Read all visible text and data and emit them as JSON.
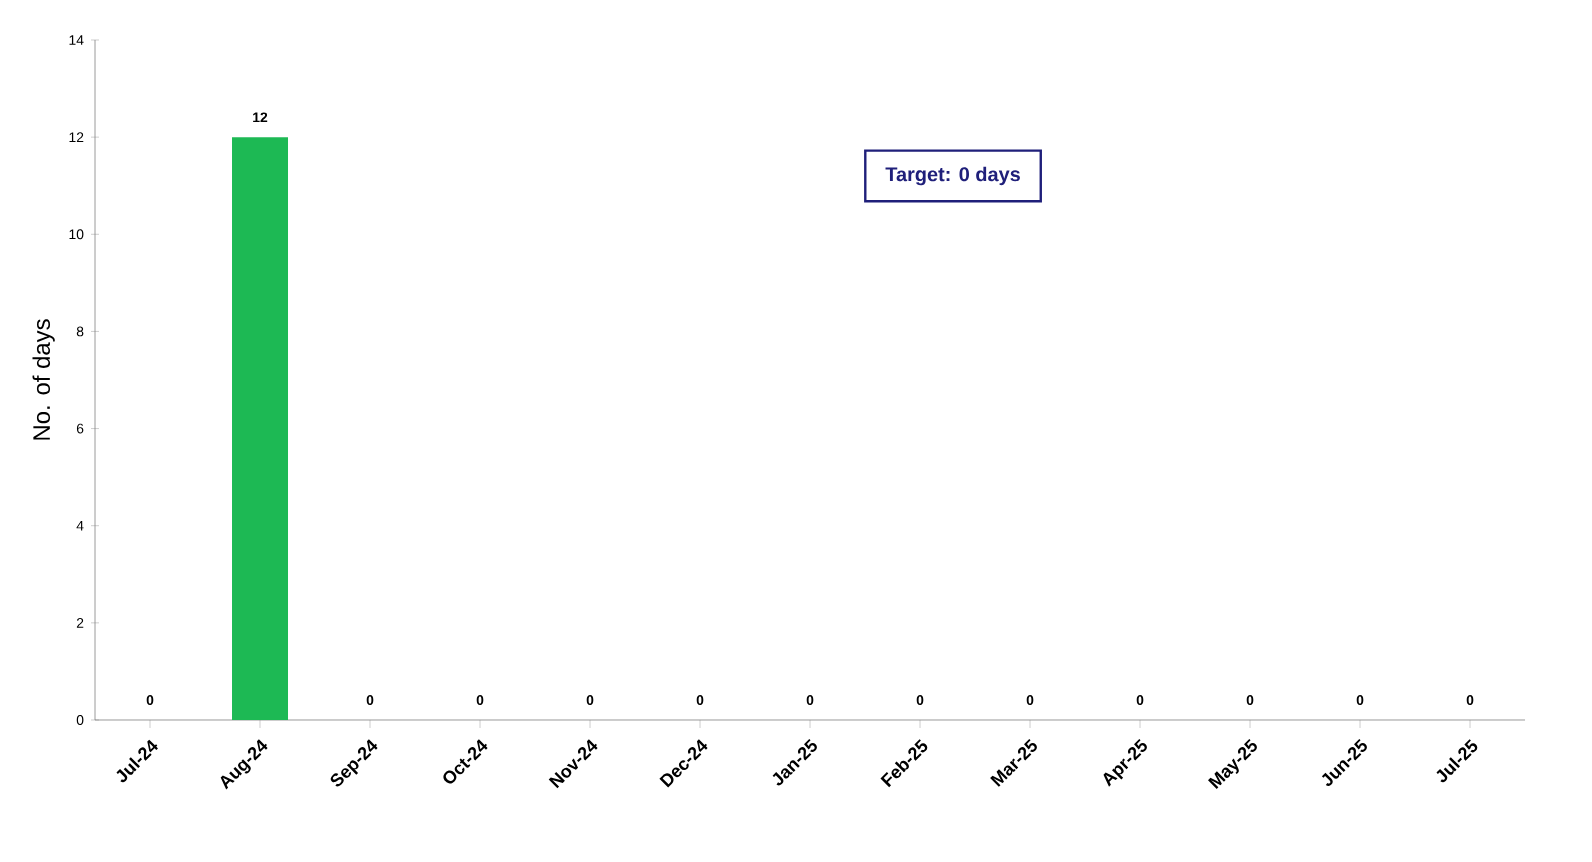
{
  "chart_data": {
    "type": "bar",
    "categories": [
      "Jul-24",
      "Aug-24",
      "Sep-24",
      "Oct-24",
      "Nov-24",
      "Dec-24",
      "Jan-25",
      "Feb-25",
      "Mar-25",
      "Apr-25",
      "May-25",
      "Jun-25",
      "Jul-25"
    ],
    "values": [
      0,
      12,
      0,
      0,
      0,
      0,
      0,
      0,
      0,
      0,
      0,
      0,
      0
    ],
    "color": "#1db954",
    "ylabel": "No. of days",
    "ylim": [
      0,
      14
    ],
    "yticks": [
      0,
      2,
      4,
      6,
      8,
      10,
      12,
      14
    ],
    "data_labels": true,
    "annotations": [
      "Target: 0 days"
    ]
  }
}
